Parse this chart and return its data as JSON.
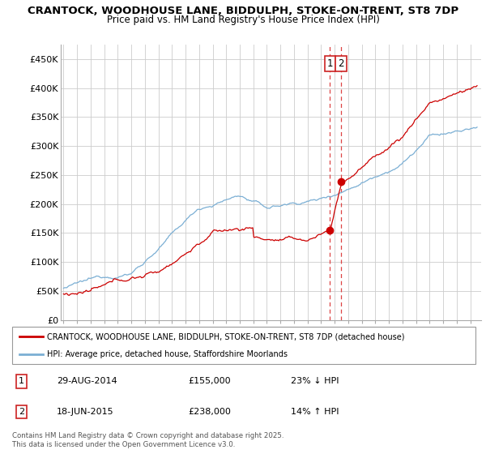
{
  "title1": "CRANTOCK, WOODHOUSE LANE, BIDDULPH, STOKE-ON-TRENT, ST8 7DP",
  "title2": "Price paid vs. HM Land Registry's House Price Index (HPI)",
  "background_color": "#ffffff",
  "grid_color": "#cccccc",
  "line1_color": "#cc0000",
  "line2_color": "#7bafd4",
  "transaction1_date": "29-AUG-2014",
  "transaction1_price": 155000,
  "transaction1_hpi_val": 201300,
  "transaction1_label": "23% ↓ HPI",
  "transaction2_date": "18-JUN-2015",
  "transaction2_price": 238000,
  "transaction2_hpi_val": 208800,
  "transaction2_label": "14% ↑ HPI",
  "legend_line1": "CRANTOCK, WOODHOUSE LANE, BIDDULPH, STOKE-ON-TRENT, ST8 7DP (detached house)",
  "legend_line2": "HPI: Average price, detached house, Staffordshire Moorlands",
  "footer": "Contains HM Land Registry data © Crown copyright and database right 2025.\nThis data is licensed under the Open Government Licence v3.0.",
  "ylim": [
    0,
    475000
  ],
  "yticks": [
    0,
    50000,
    100000,
    150000,
    200000,
    250000,
    300000,
    350000,
    400000,
    450000
  ],
  "ytick_labels": [
    "£0",
    "£50K",
    "£100K",
    "£150K",
    "£200K",
    "£250K",
    "£300K",
    "£350K",
    "£400K",
    "£450K"
  ],
  "vline_x1": 2014.66,
  "vline_x2": 2015.46,
  "xmin": 1995,
  "xmax": 2025.5
}
